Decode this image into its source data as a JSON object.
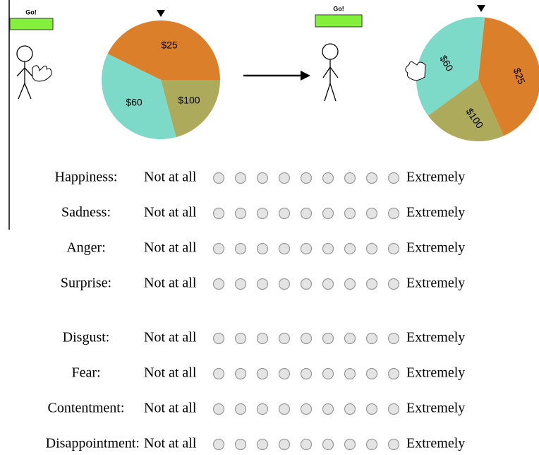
{
  "before": {
    "button": "Go!",
    "wheel": [
      "$25",
      "$60",
      "$100"
    ]
  },
  "after": {
    "button": "Go!",
    "wheel": [
      "$60",
      "$25",
      "$100"
    ]
  },
  "scales": [
    {
      "label": "Happiness:",
      "low": "Not at all",
      "high": "Extremely"
    },
    {
      "label": "Sadness:",
      "low": "Not at all",
      "high": "Extremely"
    },
    {
      "label": "Anger:",
      "low": "Not at all",
      "high": "Extremely"
    },
    {
      "label": "Surprise:",
      "low": "Not at all",
      "high": "Extremely"
    },
    {
      "label": "Disgust:",
      "low": "Not at all",
      "high": "Extremely"
    },
    {
      "label": "Fear:",
      "low": "Not at all",
      "high": "Extremely"
    },
    {
      "label": "Contentment:",
      "low": "Not at all",
      "high": "Extremely"
    },
    {
      "label": "Disappointment:",
      "low": "Not at all",
      "high": "Extremely"
    }
  ]
}
